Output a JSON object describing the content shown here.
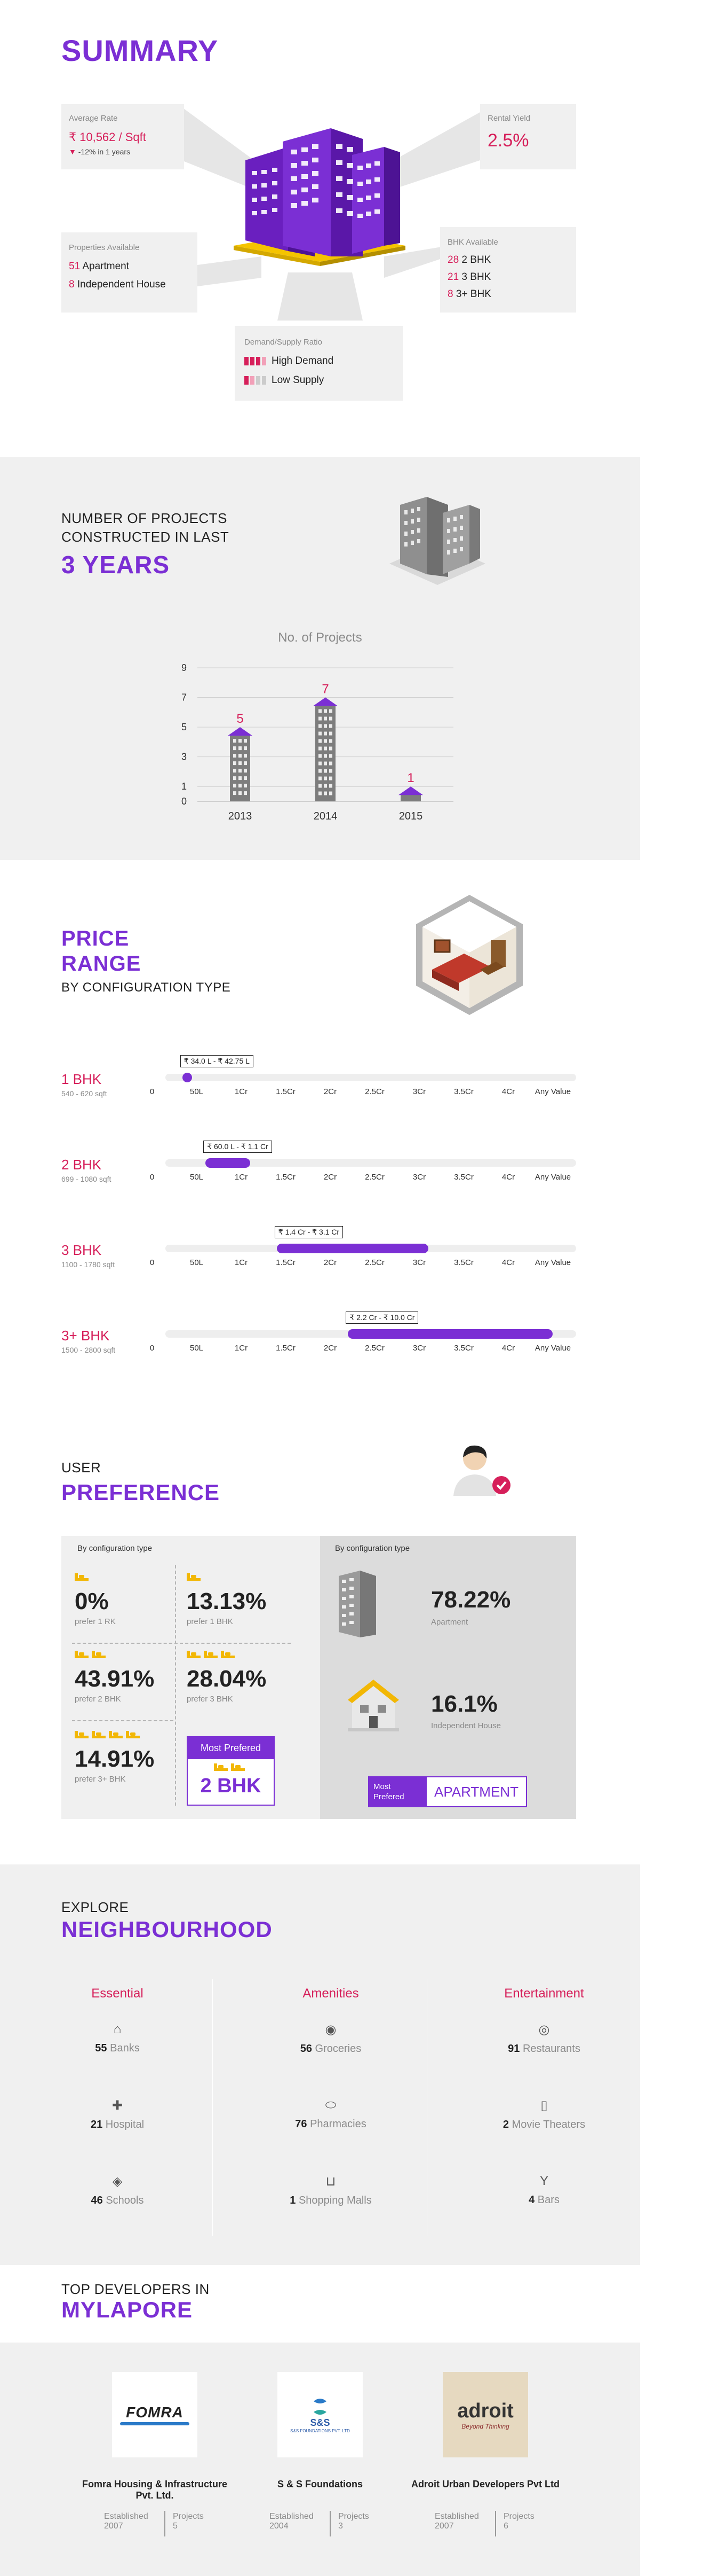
{
  "summary": {
    "title": "SUMMARY",
    "average_rate": {
      "label": "Average Rate",
      "value": "₹ 10,562 / Sqft",
      "change": "-12% in 1 years"
    },
    "rental_yield": {
      "label": "Rental Yield",
      "value": "2.5%"
    },
    "properties": {
      "label": "Properties Available",
      "items": [
        {
          "count": "51",
          "type": "Apartment"
        },
        {
          "count": "8",
          "type": "Independent House"
        }
      ]
    },
    "bhk": {
      "label": "BHK Available",
      "items": [
        {
          "count": "28",
          "type": "2 BHK"
        },
        {
          "count": "21",
          "type": "3 BHK"
        },
        {
          "count": "8",
          "type": "3+ BHK"
        }
      ]
    },
    "demand": {
      "label": "Demand/Supply Ratio",
      "items": [
        "High Demand",
        "Low Supply"
      ]
    }
  },
  "projects": {
    "kicker_line1": "NUMBER OF PROJECTS",
    "kicker_line2": "CONSTRUCTED IN LAST",
    "heading": "3 YEARS",
    "chart_data": {
      "type": "bar",
      "title": "No. of Projects",
      "categories": [
        "2013",
        "2014",
        "2015"
      ],
      "values": [
        5,
        7,
        1
      ],
      "yticks": [
        0,
        1,
        3,
        5,
        7,
        9
      ],
      "ylim": [
        0,
        9
      ]
    }
  },
  "price_range": {
    "heading_line1": "PRICE",
    "heading_line2": "RANGE",
    "kicker": "BY CONFIGURATION TYPE",
    "ticks": [
      "0",
      "50L",
      "1Cr",
      "1.5Cr",
      "2Cr",
      "2.5Cr",
      "3Cr",
      "3.5Cr",
      "4Cr",
      "Any Value"
    ],
    "rows": [
      {
        "name": "1 BHK",
        "size": "540 - 620 sqft",
        "range": "₹ 34.0 L - ₹ 42.75 L",
        "start": 0.68,
        "end": 0.86
      },
      {
        "name": "2 BHK",
        "size": "699 - 1080 sqft",
        "range": "₹ 60.0 L - ₹ 1.1 Cr",
        "start": 1.2,
        "end": 2.2
      },
      {
        "name": "3 BHK",
        "size": "1100 - 1780 sqft",
        "range": "₹ 1.4 Cr - ₹ 3.1 Cr",
        "start": 2.8,
        "end": 6.2
      },
      {
        "name": "3+ BHK",
        "size": "1500 - 2800 sqft",
        "range": "₹ 2.2 Cr - ₹ 10.0 Cr",
        "start": 4.4,
        "end": 9.0
      }
    ]
  },
  "preference": {
    "kicker": "USER",
    "heading": "PREFERENCE",
    "left_label": "By configuration type",
    "right_label": "By configuration type",
    "items": [
      {
        "value": "0%",
        "sub": "prefer 1 RK",
        "beds": 1
      },
      {
        "value": "13.13%",
        "sub": "prefer 1 BHK",
        "beds": 1
      },
      {
        "value": "43.91%",
        "sub": "prefer 2 BHK",
        "beds": 2
      },
      {
        "value": "28.04%",
        "sub": "prefer 3 BHK",
        "beds": 3
      },
      {
        "value": "14.91%",
        "sub": "prefer 3+ BHK",
        "beds": 4
      }
    ],
    "most_preferred_label": "Most Prefered",
    "most_preferred_value": "2 BHK",
    "types": [
      {
        "value": "78.22%",
        "sub": "Apartment"
      },
      {
        "value": "16.1%",
        "sub": "Independent House"
      }
    ],
    "type_most_label_line1": "Most",
    "type_most_label_line2": "Prefered",
    "type_most_value": "APARTMENT"
  },
  "neighbourhood": {
    "kicker": "EXPLORE",
    "heading": "NEIGHBOURHOOD",
    "columns": [
      {
        "title": "Essential",
        "items": [
          {
            "count": "55",
            "name": "Banks",
            "icon": "bank-icon"
          },
          {
            "count": "21",
            "name": "Hospital",
            "icon": "hospital-icon"
          },
          {
            "count": "46",
            "name": "Schools",
            "icon": "school-icon"
          }
        ]
      },
      {
        "title": "Amenities",
        "items": [
          {
            "count": "56",
            "name": "Groceries",
            "icon": "grocery-icon"
          },
          {
            "count": "76",
            "name": "Pharmacies",
            "icon": "pill-icon"
          },
          {
            "count": "1",
            "name": "Shopping Malls",
            "icon": "cart-icon"
          }
        ]
      },
      {
        "title": "Entertainment",
        "items": [
          {
            "count": "91",
            "name": "Restaurants",
            "icon": "restaurant-icon"
          },
          {
            "count": "2",
            "name": "Movie Theaters",
            "icon": "movie-icon"
          },
          {
            "count": "4",
            "name": "Bars",
            "icon": "cocktail-icon"
          }
        ]
      }
    ]
  },
  "developers": {
    "kicker": "TOP DEVELOPERS IN",
    "heading": "MYLAPORE",
    "established_label": "Established",
    "projects_label": "Projects",
    "items": [
      {
        "logo": "FOMRA",
        "name": "Fomra Housing & Infrastructure Pvt. Ltd.",
        "established": "2007",
        "projects": "5"
      },
      {
        "logo": "S&S",
        "logo_sub": "S&S FOUNDATIONS PVT. LTD",
        "name": "S & S Foundations",
        "established": "2004",
        "projects": "3"
      },
      {
        "logo": "adroit",
        "logo_sub": "Beyond Thinking",
        "name": "Adroit Urban Developers Pvt Ltd",
        "established": "2007",
        "projects": "6"
      }
    ]
  }
}
